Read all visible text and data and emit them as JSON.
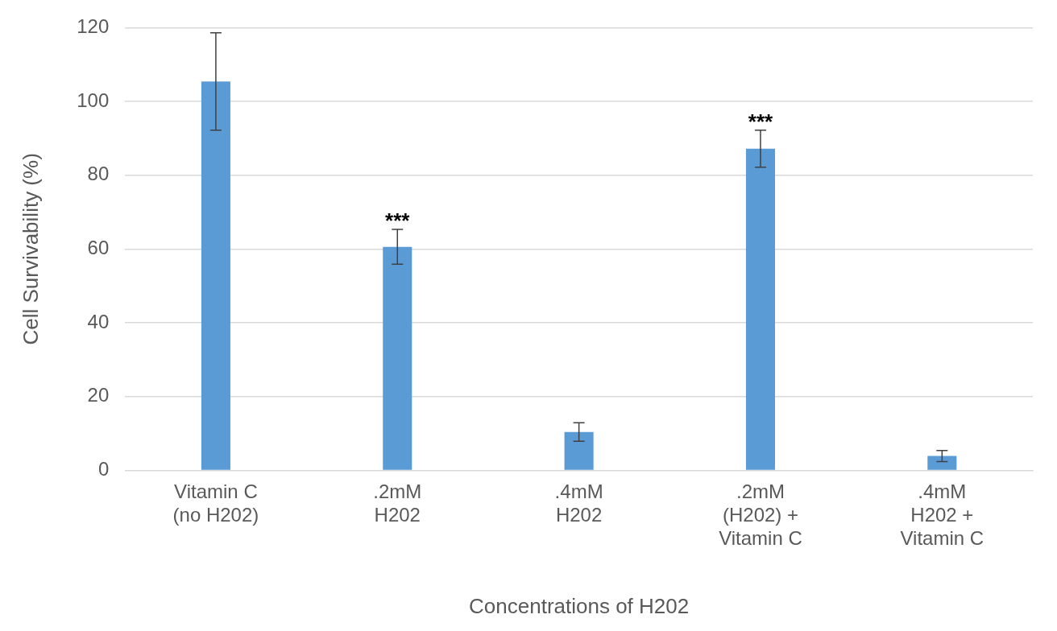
{
  "chart_data": {
    "type": "bar",
    "categories": [
      "Vitamin C\n(no H202)",
      ".2mM\nH202",
      ".4mM\nH202",
      ".2mM\n(H202) +\nVitamin C",
      ".4mM\nH202 +\nVitamin C"
    ],
    "values": [
      105.4,
      60.6,
      10.4,
      87.2,
      3.9
    ],
    "errors": [
      13.2,
      4.7,
      2.5,
      5,
      1.5
    ],
    "color": "#5b9bd5",
    "xlabel": "Concentrations of H202",
    "ylabel": "Cell Survivability (%)",
    "ylim": [
      0,
      120
    ],
    "yticks": [
      0,
      20,
      40,
      60,
      80,
      100,
      120
    ],
    "grid": "y",
    "legend": false,
    "annotations": [
      {
        "text": "***",
        "x": ".2mM\nH202",
        "y": 65.4
      },
      {
        "text": "***",
        "x": ".2mM\n(H202) +\nVitamin C",
        "y": 92.2
      }
    ]
  }
}
